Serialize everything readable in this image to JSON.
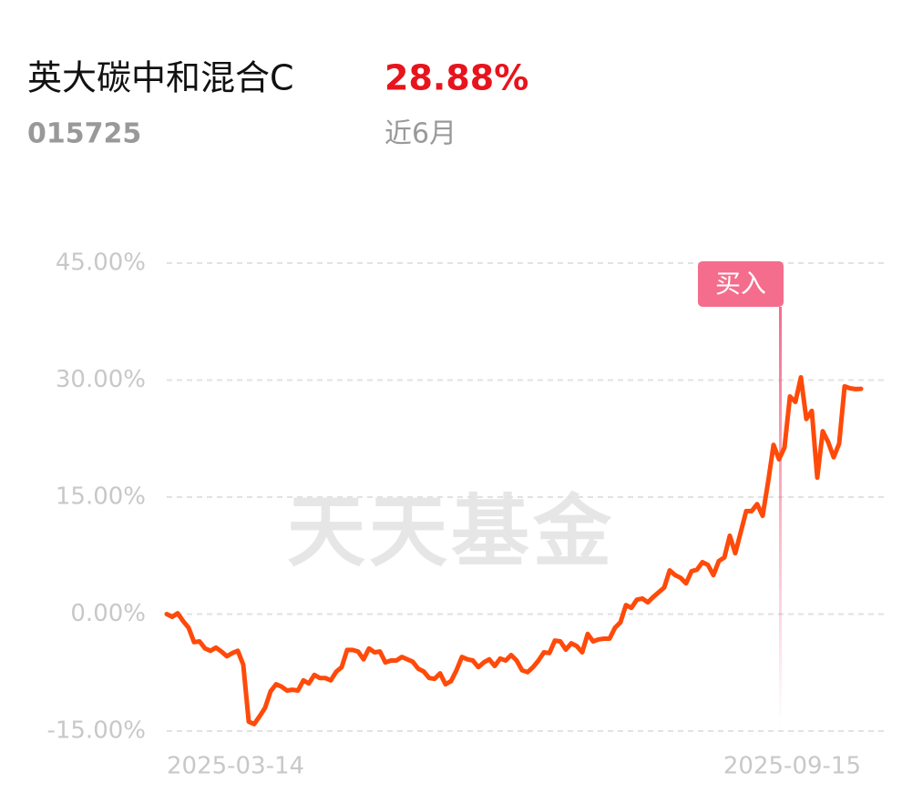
{
  "header": {
    "fund_name": "英大碳中和混合C",
    "return": "28.88%",
    "code": "015725",
    "period": "近6月"
  },
  "chart_data": {
    "type": "line",
    "watermark": "天天基金",
    "categories": [
      "2025-03-14",
      null,
      null,
      null,
      null,
      null,
      null,
      null,
      null,
      null,
      null,
      null,
      null,
      null,
      null,
      null,
      null,
      null,
      null,
      null,
      null,
      null,
      null,
      null,
      null,
      null,
      null,
      null,
      null,
      null,
      null,
      null,
      null,
      null,
      null,
      null,
      null,
      null,
      null,
      null,
      null,
      null,
      null,
      null,
      null,
      null,
      null,
      null,
      null,
      null,
      null,
      null,
      null,
      null,
      null,
      null,
      null,
      null,
      null,
      null,
      null,
      null,
      null,
      null,
      null,
      null,
      null,
      null,
      null,
      null,
      null,
      null,
      null,
      null,
      null,
      null,
      null,
      null,
      null,
      null,
      null,
      null,
      null,
      null,
      null,
      null,
      null,
      null,
      null,
      null,
      null,
      null,
      null,
      null,
      null,
      null,
      null,
      null,
      null,
      null,
      null,
      null,
      null,
      null,
      null,
      null,
      null,
      null,
      null,
      null,
      null,
      null,
      null,
      null,
      null,
      null,
      null,
      null,
      null,
      null,
      null,
      null,
      null,
      null,
      null,
      null,
      null,
      "2025-09-15"
    ],
    "values": [
      0,
      -0.35,
      0.1,
      -0.9,
      -1.75,
      -3.6,
      -3.5,
      -4.4,
      -4.7,
      -4.3,
      -4.8,
      -5.4,
      -5.0,
      -4.7,
      -6.5,
      -13.8,
      -14.1,
      -13.1,
      -12.0,
      -9.9,
      -9.0,
      -9.3,
      -9.8,
      -9.7,
      -9.8,
      -8.5,
      -8.9,
      -7.8,
      -8.2,
      -8.2,
      -8.5,
      -7.4,
      -6.8,
      -4.6,
      -4.6,
      -4.8,
      -5.8,
      -4.4,
      -4.9,
      -4.8,
      -6.2,
      -5.95,
      -5.95,
      -5.5,
      -5.8,
      -6.1,
      -7.0,
      -7.35,
      -8.2,
      -8.3,
      -7.6,
      -9.0,
      -8.6,
      -7.2,
      -5.5,
      -5.8,
      -5.95,
      -6.8,
      -6.2,
      -5.8,
      -6.65,
      -5.7,
      -5.95,
      -5.25,
      -5.95,
      -7.2,
      -7.45,
      -6.8,
      -5.95,
      -4.9,
      -5.0,
      -3.4,
      -3.5,
      -4.55,
      -3.75,
      -4.1,
      -4.9,
      -2.55,
      -3.5,
      -3.25,
      -3.15,
      -3.15,
      -1.75,
      -1.05,
      1.15,
      0.8,
      1.85,
      2.0,
      1.5,
      2.2,
      2.8,
      3.4,
      5.6,
      5.0,
      4.65,
      3.95,
      5.5,
      5.7,
      6.65,
      6.3,
      5.0,
      6.8,
      7.25,
      10.05,
      7.8,
      10.5,
      13.2,
      13.2,
      14.1,
      12.6,
      16.9,
      21.7,
      19.85,
      21.35,
      27.9,
      27.2,
      30.35,
      25.0,
      26.05,
      17.5,
      23.45,
      22.05,
      20.1,
      21.85,
      29.2,
      28.95,
      28.85,
      28.88
    ],
    "color": "#ff4a0a",
    "ylim": [
      -15,
      45
    ],
    "yticks": [
      {
        "value": -15,
        "label": "-15.00%"
      },
      {
        "value": 0,
        "label": "0.00%"
      },
      {
        "value": 15,
        "label": "15.00%"
      },
      {
        "value": 30,
        "label": "30.00%"
      },
      {
        "value": 45,
        "label": "45.00%"
      }
    ],
    "grid": true,
    "buy_marker": {
      "label": "买入",
      "category_index": 112,
      "color": "#f46d8c"
    }
  }
}
